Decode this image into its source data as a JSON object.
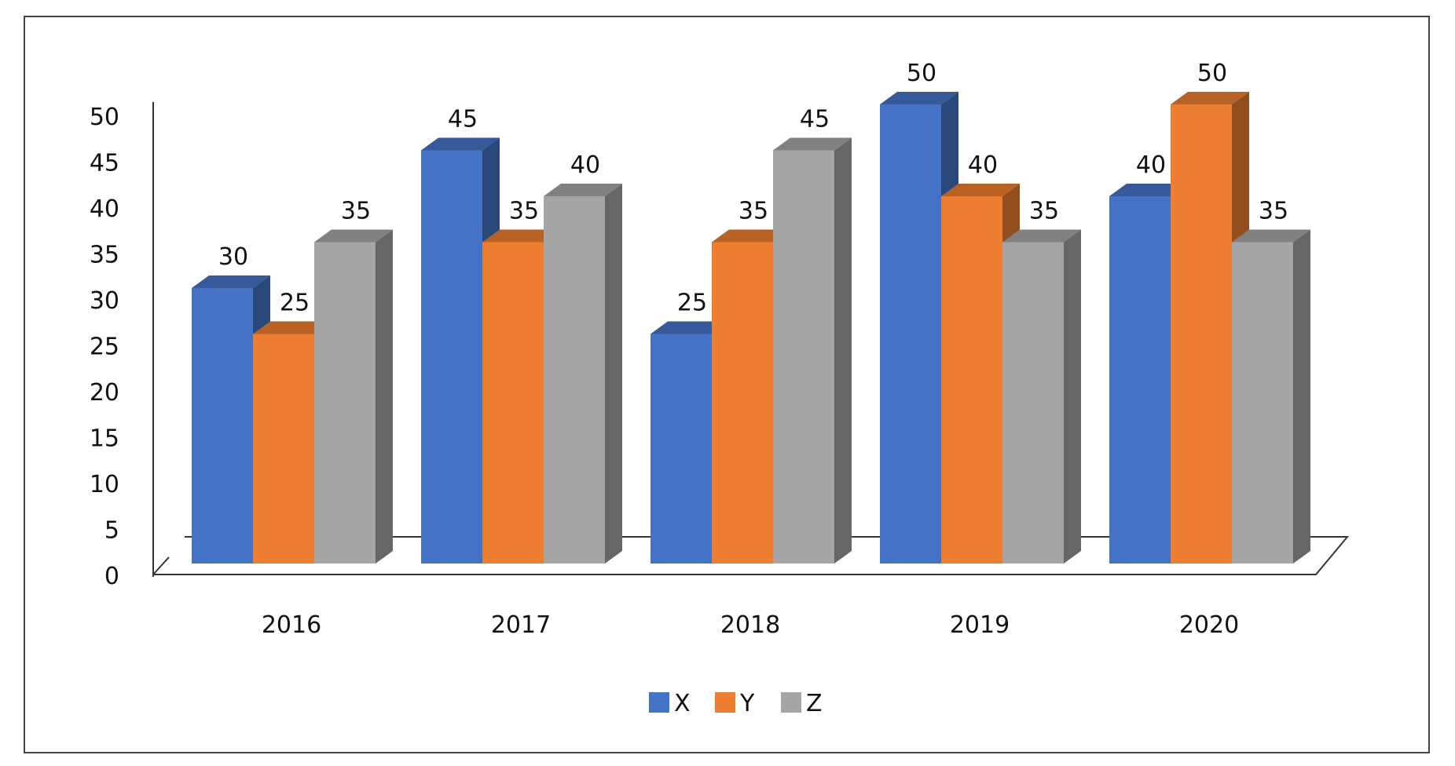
{
  "chart_data": {
    "type": "bar",
    "categories": [
      "2016",
      "2017",
      "2018",
      "2019",
      "2020"
    ],
    "series": [
      {
        "name": "X",
        "color": "#4472C4",
        "values": [
          30,
          45,
          25,
          50,
          40
        ]
      },
      {
        "name": "Y",
        "color": "#ED7D31",
        "values": [
          25,
          35,
          35,
          40,
          50
        ]
      },
      {
        "name": "Z",
        "color": "#A5A5A5",
        "values": [
          35,
          40,
          45,
          35,
          35
        ]
      }
    ],
    "ylim": [
      0,
      50
    ],
    "yticks": [
      "0",
      "5",
      "10",
      "15",
      "20",
      "25",
      "30",
      "35",
      "40",
      "45",
      "50"
    ],
    "grid": false,
    "legend_position": "bottom",
    "style": "3d-clustered-column"
  }
}
